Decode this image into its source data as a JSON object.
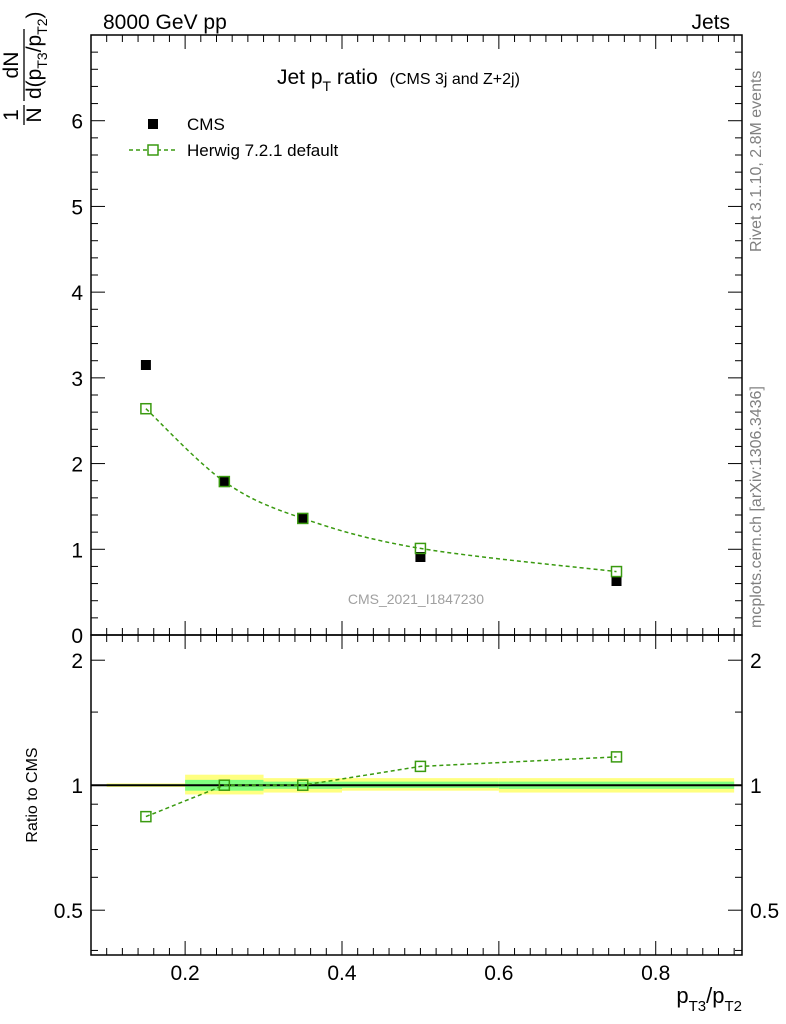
{
  "header": {
    "left": "8000 GeV pp",
    "right": "Jets"
  },
  "title": {
    "main": "Jet p",
    "main_sub": "T",
    "main_rest": " ratio",
    "detail": "(CMS 3j and Z+2j)"
  },
  "side_labels": {
    "rivet": "Rivet 3.1.10,  2.8M events",
    "mcplots": "mcplots.cern.ch [arXiv:1306.3436]"
  },
  "watermark": "CMS_2021_I1847230",
  "axes": {
    "xlabel_p": "p",
    "xlabel_sub1": "T3",
    "xlabel_slash": "/p",
    "xlabel_sub2": "T2",
    "ylabel_num1": "1",
    "ylabel_den1": "N",
    "ylabel_num2": "dN",
    "ylabel_den2": "d(p  /p  )",
    "ylabel_sub1": "T3",
    "ylabel_sub2": "T2",
    "ratio_ylabel": "Ratio to CMS"
  },
  "legend": [
    {
      "label": "CMS",
      "color": "#000000",
      "marker": "filled-square"
    },
    {
      "label": "Herwig 7.2.1 default",
      "color": "#3a9a10",
      "marker": "open-square-dashed"
    }
  ],
  "colors": {
    "data": "#000000",
    "mc": "#3a9a10",
    "band_outer": "#ffff80",
    "band_inner": "#80ff80"
  },
  "chart_data": [
    {
      "type": "scatter",
      "panel": "main",
      "xlim": [
        0.08,
        0.91
      ],
      "ylim": [
        0,
        7
      ],
      "yticks": [
        0,
        1,
        2,
        3,
        4,
        5,
        6
      ],
      "xticks": [
        0.2,
        0.4,
        0.6,
        0.8
      ],
      "series": [
        {
          "name": "CMS",
          "x": [
            0.15,
            0.25,
            0.35,
            0.5,
            0.75
          ],
          "y": [
            3.15,
            1.79,
            1.36,
            0.91,
            0.63
          ]
        },
        {
          "name": "Herwig 7.2.1 default",
          "x": [
            0.15,
            0.25,
            0.35,
            0.5,
            0.75
          ],
          "y": [
            2.64,
            1.79,
            1.36,
            1.01,
            0.74
          ]
        }
      ]
    },
    {
      "type": "scatter",
      "panel": "ratio",
      "ylabel": "Ratio to CMS",
      "xlim": [
        0.08,
        0.91
      ],
      "ylim": [
        0.39,
        2.3
      ],
      "ylog": true,
      "yticks": [
        0.5,
        1,
        2
      ],
      "xticks": [
        0.2,
        0.4,
        0.6,
        0.8
      ],
      "bands": [
        {
          "x_low": 0.1,
          "x_high": 0.2,
          "outer": [
            0.99,
            1.01
          ],
          "inner": [
            0.995,
            1.005
          ]
        },
        {
          "x_low": 0.2,
          "x_high": 0.3,
          "outer": [
            0.95,
            1.06
          ],
          "inner": [
            0.97,
            1.03
          ]
        },
        {
          "x_low": 0.3,
          "x_high": 0.4,
          "outer": [
            0.96,
            1.04
          ],
          "inner": [
            0.98,
            1.02
          ]
        },
        {
          "x_low": 0.4,
          "x_high": 0.6,
          "outer": [
            0.97,
            1.04
          ],
          "inner": [
            0.985,
            1.02
          ]
        },
        {
          "x_low": 0.6,
          "x_high": 0.9,
          "outer": [
            0.96,
            1.04
          ],
          "inner": [
            0.98,
            1.02
          ]
        }
      ],
      "series": [
        {
          "name": "Herwig 7.2.1 default",
          "x": [
            0.15,
            0.25,
            0.35,
            0.5,
            0.75
          ],
          "y": [
            0.84,
            1.0,
            1.0,
            1.11,
            1.17
          ]
        }
      ]
    }
  ]
}
